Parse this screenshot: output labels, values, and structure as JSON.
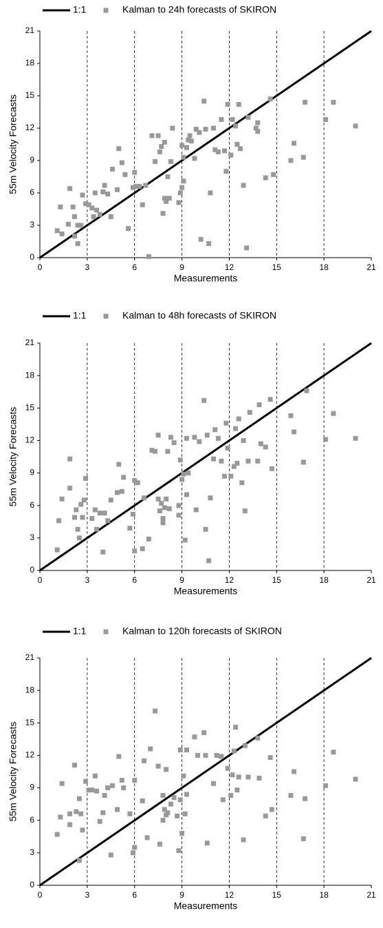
{
  "chart_data": [
    {
      "type": "scatter",
      "xlabel": "Measurements",
      "ylabel": "55m Velocity Forecasts",
      "xlim": [
        0,
        21
      ],
      "ylim": [
        0,
        21
      ],
      "xticks": [
        0,
        3,
        6,
        9,
        12,
        15,
        18,
        21
      ],
      "yticks": [
        0,
        3,
        6,
        9,
        12,
        15,
        18,
        21
      ],
      "grid": "x",
      "series": [
        {
          "name": "1:1",
          "color": "#000000",
          "style": "line",
          "x": [
            0,
            21
          ],
          "y": [
            0,
            21
          ]
        },
        {
          "name": "Kalman to 24h forecasts of SKIRON",
          "color": "#999999",
          "style": "marker",
          "x": [
            1.1,
            1.3,
            1.4,
            1.8,
            1.9,
            2.1,
            2.2,
            2.2,
            2.4,
            2.4,
            2.6,
            2.7,
            2.9,
            3.1,
            3.3,
            3.4,
            3.5,
            3.6,
            3.8,
            4.0,
            4.1,
            4.3,
            4.5,
            4.6,
            4.9,
            5.0,
            5.2,
            5.4,
            5.6,
            5.9,
            6.0,
            6.1,
            6.3,
            6.5,
            6.7,
            6.9,
            7.1,
            7.3,
            7.5,
            7.6,
            7.7,
            7.8,
            7.9,
            7.9,
            8.0,
            8.1,
            8.2,
            8.3,
            8.4,
            8.8,
            8.9,
            9.0,
            9.0,
            9.1,
            9.1,
            9.3,
            9.4,
            9.5,
            9.6,
            9.8,
            9.9,
            10.1,
            10.2,
            10.4,
            10.5,
            10.7,
            10.8,
            11.0,
            11.1,
            11.3,
            11.5,
            11.7,
            11.8,
            11.9,
            12.1,
            12.2,
            12.4,
            12.5,
            12.6,
            12.7,
            12.9,
            13.2,
            13.1,
            13.7,
            13.8,
            13.8,
            14.3,
            14.6,
            14.8,
            15.9,
            16.1,
            16.7,
            16.8,
            18.1,
            18.6,
            20.0
          ],
          "y": [
            2.5,
            4.7,
            2.2,
            3.1,
            6.4,
            4.7,
            3.8,
            2.0,
            1.3,
            3.0,
            3.0,
            5.8,
            5.0,
            4.9,
            4.6,
            3.8,
            6.0,
            4.4,
            4.0,
            6.1,
            6.7,
            5.9,
            3.8,
            8.2,
            6.3,
            10.1,
            8.8,
            7.7,
            2.7,
            6.5,
            7.9,
            6.6,
            6.6,
            4.9,
            6.7,
            0.1,
            11.3,
            8.9,
            11.3,
            9.8,
            10.3,
            4.1,
            5.5,
            10.7,
            5.2,
            7.5,
            5.5,
            8.9,
            12.0,
            5.1,
            6.0,
            6.5,
            10.4,
            7.1,
            9.3,
            10.2,
            10.9,
            11.3,
            10.8,
            9.2,
            11.9,
            11.6,
            1.7,
            14.5,
            11.9,
            1.3,
            6.0,
            12.0,
            10.0,
            9.8,
            12.8,
            9.9,
            8.0,
            14.2,
            9.5,
            12.8,
            12.2,
            10.5,
            14.2,
            10.1,
            6.7,
            13.0,
            0.9,
            12.0,
            12.5,
            11.7,
            7.4,
            14.7,
            7.7,
            9.0,
            10.6,
            9.3,
            14.4,
            12.8,
            14.4,
            12.2
          ]
        }
      ]
    },
    {
      "type": "scatter",
      "xlabel": "Measurements",
      "ylabel": "55m Velocity Forecasts",
      "xlim": [
        0,
        21
      ],
      "ylim": [
        0,
        21
      ],
      "xticks": [
        0,
        3,
        6,
        9,
        12,
        15,
        18,
        21
      ],
      "yticks": [
        0,
        3,
        6,
        9,
        12,
        15,
        18,
        21
      ],
      "grid": "x",
      "series": [
        {
          "name": "1:1",
          "color": "#000000",
          "style": "line",
          "x": [
            0,
            21
          ],
          "y": [
            0,
            21
          ]
        },
        {
          "name": "Kalman to 48h forecasts of SKIRON",
          "color": "#999999",
          "style": "marker",
          "x": [
            1.1,
            1.2,
            1.4,
            1.9,
            1.9,
            2.2,
            2.3,
            2.4,
            2.5,
            2.6,
            2.7,
            2.8,
            2.9,
            3.3,
            3.5,
            3.6,
            3.8,
            4.0,
            4.1,
            4.3,
            4.5,
            4.9,
            5.0,
            5.2,
            5.3,
            5.7,
            5.9,
            6.0,
            6.0,
            6.2,
            6.5,
            6.6,
            6.9,
            7.1,
            7.3,
            7.5,
            7.5,
            7.6,
            7.7,
            7.8,
            7.8,
            7.9,
            8.0,
            8.1,
            8.2,
            8.3,
            8.5,
            8.8,
            8.8,
            8.9,
            9.0,
            9.1,
            9.2,
            9.3,
            9.3,
            9.4,
            9.8,
            9.9,
            10.1,
            10.4,
            10.5,
            10.6,
            10.7,
            10.8,
            11.0,
            11.1,
            11.3,
            11.5,
            11.7,
            11.8,
            11.9,
            12.1,
            12.3,
            12.4,
            12.5,
            12.6,
            12.8,
            12.9,
            13.0,
            13.2,
            13.3,
            13.8,
            13.9,
            14.0,
            14.3,
            14.6,
            14.7,
            15.9,
            16.1,
            16.7,
            16.9,
            18.1,
            18.6,
            20.0
          ],
          "y": [
            1.9,
            4.6,
            6.6,
            10.3,
            7.6,
            4.9,
            5.6,
            3.8,
            3.0,
            6.1,
            4.9,
            6.5,
            8.5,
            4.8,
            5.6,
            3.8,
            5.3,
            1.7,
            5.3,
            4.6,
            6.5,
            7.2,
            9.8,
            7.3,
            8.6,
            3.9,
            5.2,
            1.8,
            8.3,
            8.1,
            2.0,
            6.7,
            2.9,
            11.1,
            11.0,
            12.5,
            6.6,
            5.5,
            6.2,
            4.8,
            4.4,
            5.8,
            6.6,
            11.0,
            5.7,
            12.3,
            11.8,
            6.0,
            5.1,
            10.2,
            8.4,
            8.9,
            2.8,
            12.2,
            7.0,
            9.0,
            12.3,
            5.6,
            11.9,
            15.7,
            3.8,
            12.5,
            0.9,
            6.7,
            10.3,
            13.0,
            12.2,
            10.1,
            8.7,
            13.6,
            11.3,
            8.7,
            9.6,
            13.1,
            9.9,
            14.0,
            8.1,
            12.0,
            5.5,
            10.1,
            14.6,
            10.1,
            15.3,
            11.7,
            11.4,
            15.8,
            9.4,
            14.3,
            12.8,
            10.0,
            16.6,
            12.1,
            14.5,
            12.2
          ]
        }
      ]
    },
    {
      "type": "scatter",
      "xlabel": "Measurements",
      "ylabel": "55m Velocity Forecasts",
      "xlim": [
        0,
        21
      ],
      "ylim": [
        0,
        21
      ],
      "xticks": [
        0,
        3,
        6,
        9,
        12,
        15,
        18,
        21
      ],
      "yticks": [
        0,
        3,
        6,
        9,
        12,
        15,
        18,
        21
      ],
      "grid": "x",
      "series": [
        {
          "name": "1:1",
          "color": "#000000",
          "style": "line",
          "x": [
            0,
            21
          ],
          "y": [
            0,
            21
          ]
        },
        {
          "name": "Kalman to 120h forecasts of SKIRON",
          "color": "#999999",
          "style": "marker",
          "x": [
            1.1,
            1.3,
            1.4,
            1.9,
            1.9,
            2.2,
            2.3,
            2.5,
            2.5,
            2.6,
            2.7,
            2.9,
            3.1,
            3.3,
            3.5,
            3.6,
            3.8,
            4.0,
            4.1,
            4.3,
            4.5,
            4.6,
            4.9,
            5.0,
            5.2,
            5.3,
            5.7,
            5.9,
            6.0,
            6.0,
            6.5,
            6.6,
            6.8,
            7.0,
            7.3,
            7.5,
            7.6,
            7.8,
            7.8,
            7.9,
            8.0,
            8.0,
            8.1,
            8.3,
            8.5,
            8.7,
            8.8,
            8.9,
            8.9,
            9.0,
            9.1,
            9.2,
            9.3,
            9.3,
            9.8,
            10.0,
            10.4,
            10.5,
            10.6,
            11.0,
            11.2,
            11.5,
            11.6,
            11.9,
            12.1,
            12.2,
            12.3,
            12.4,
            12.5,
            12.6,
            12.9,
            13.0,
            13.2,
            13.8,
            13.9,
            14.3,
            14.6,
            14.7,
            15.9,
            16.1,
            16.7,
            16.8,
            18.1,
            18.6,
            20.0
          ],
          "y": [
            4.7,
            6.3,
            9.4,
            5.6,
            6.6,
            11.1,
            6.8,
            2.3,
            8.0,
            6.6,
            5.1,
            9.6,
            8.8,
            8.8,
            10.1,
            8.7,
            5.9,
            6.7,
            8.3,
            9.0,
            2.8,
            9.2,
            7.0,
            11.9,
            9.7,
            9.0,
            6.6,
            3.0,
            9.7,
            3.5,
            7.8,
            11.5,
            4.4,
            12.6,
            16.1,
            11.0,
            3.8,
            8.3,
            6.0,
            7.0,
            6.5,
            10.7,
            6.7,
            7.5,
            8.1,
            6.4,
            3.2,
            12.5,
            7.9,
            4.8,
            10.1,
            6.6,
            8.4,
            12.5,
            13.7,
            12.0,
            14.1,
            12.0,
            3.9,
            9.4,
            12.0,
            11.9,
            7.9,
            10.8,
            8.3,
            10.2,
            12.4,
            14.6,
            8.8,
            10.0,
            4.2,
            12.9,
            10.0,
            13.6,
            9.9,
            6.4,
            11.8,
            7.0,
            8.3,
            10.5,
            4.3,
            8.0,
            9.2,
            12.3,
            9.8
          ]
        }
      ]
    }
  ]
}
